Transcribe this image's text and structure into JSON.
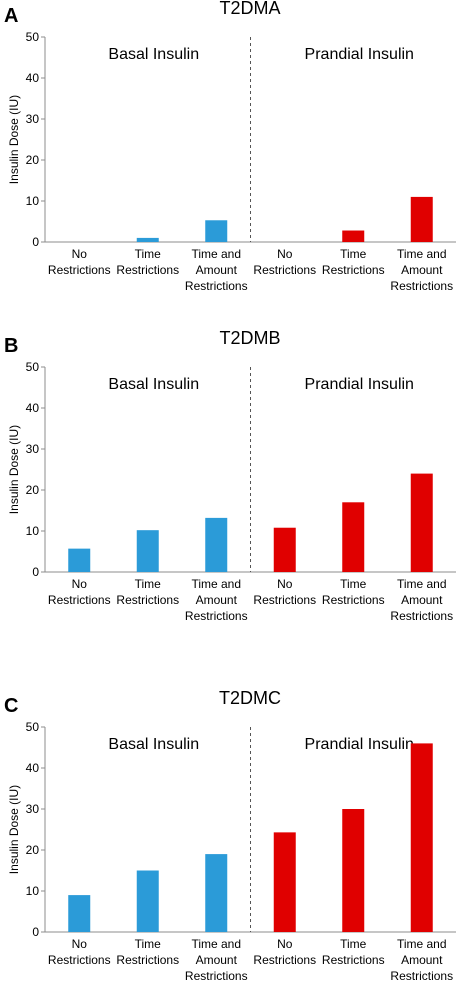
{
  "figure": {
    "panels": [
      "A",
      "B",
      "C"
    ],
    "section_labels": [
      "Basal Insulin",
      "Prandial Insulin"
    ]
  },
  "chart_data": [
    {
      "type": "bar",
      "panel": "A",
      "title": "T2DMA",
      "xlabel": "",
      "ylabel": "Insulin Dose (IU)",
      "ylim": [
        0,
        50
      ],
      "yticks": [
        0,
        10,
        20,
        30,
        40,
        50
      ],
      "grid": false,
      "legend": "none",
      "categories": [
        [
          "No",
          "Restrictions"
        ],
        [
          "Time",
          "Restrictions"
        ],
        [
          "Time and",
          "Amount",
          "Restrictions"
        ],
        [
          "No",
          "Restrictions"
        ],
        [
          "Time",
          "Restrictions"
        ],
        [
          "Time and",
          "Amount",
          "Restrictions"
        ]
      ],
      "groups": [
        "Basal Insulin",
        "Prandial Insulin"
      ],
      "values": [
        0,
        1,
        5.3,
        0,
        2.8,
        11
      ],
      "colors": [
        "#2b9bd8",
        "#2b9bd8",
        "#2b9bd8",
        "#e00000",
        "#e00000",
        "#e00000"
      ]
    },
    {
      "type": "bar",
      "panel": "B",
      "title": "T2DMB",
      "xlabel": "",
      "ylabel": "Insulin Dose (IU)",
      "ylim": [
        0,
        50
      ],
      "yticks": [
        0,
        10,
        20,
        30,
        40,
        50
      ],
      "grid": false,
      "legend": "none",
      "categories": [
        [
          "No",
          "Restrictions"
        ],
        [
          "Time",
          "Restrictions"
        ],
        [
          "Time and",
          "Amount",
          "Restrictions"
        ],
        [
          "No",
          "Restrictions"
        ],
        [
          "Time",
          "Restrictions"
        ],
        [
          "Time and",
          "Amount",
          "Restrictions"
        ]
      ],
      "groups": [
        "Basal Insulin",
        "Prandial Insulin"
      ],
      "values": [
        5.7,
        10.2,
        13.2,
        10.8,
        17,
        24
      ],
      "colors": [
        "#2b9bd8",
        "#2b9bd8",
        "#2b9bd8",
        "#e00000",
        "#e00000",
        "#e00000"
      ]
    },
    {
      "type": "bar",
      "panel": "C",
      "title": "T2DMC",
      "xlabel": "",
      "ylabel": "Insulin Dose (IU)",
      "ylim": [
        0,
        50
      ],
      "yticks": [
        0,
        10,
        20,
        30,
        40,
        50
      ],
      "grid": false,
      "legend": "none",
      "categories": [
        [
          "No",
          "Restrictions"
        ],
        [
          "Time",
          "Restrictions"
        ],
        [
          "Time and",
          "Amount",
          "Restrictions"
        ],
        [
          "No",
          "Restrictions"
        ],
        [
          "Time",
          "Restrictions"
        ],
        [
          "Time and",
          "Amount",
          "Restrictions"
        ]
      ],
      "groups": [
        "Basal Insulin",
        "Prandial Insulin"
      ],
      "values": [
        9,
        15,
        19,
        24.3,
        30,
        46
      ],
      "colors": [
        "#2b9bd8",
        "#2b9bd8",
        "#2b9bd8",
        "#e00000",
        "#e00000",
        "#e00000"
      ]
    }
  ]
}
